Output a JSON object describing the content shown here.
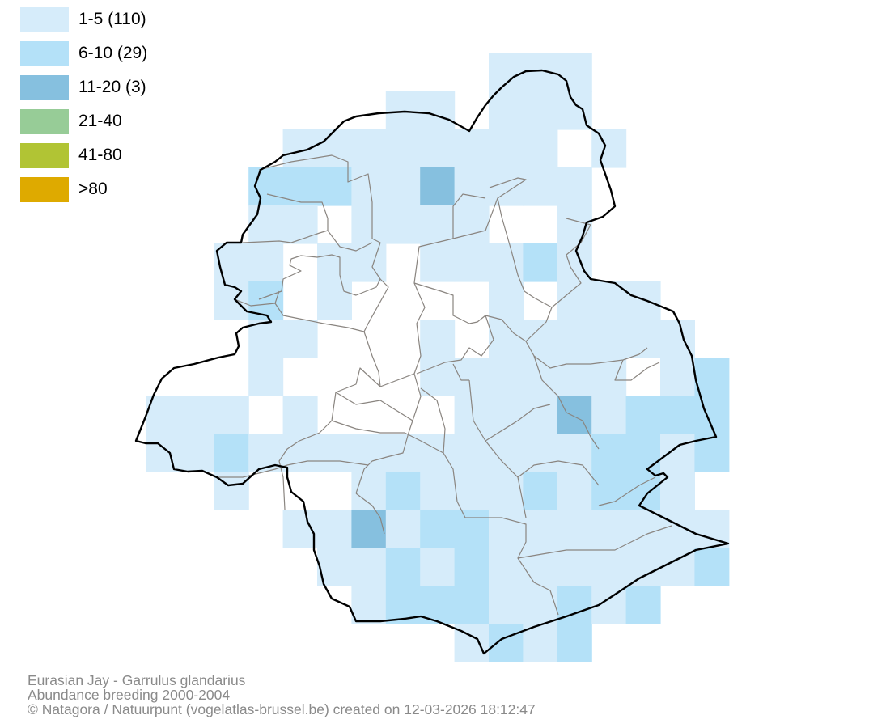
{
  "legend": {
    "items": [
      {
        "label": "1-5 (110)",
        "color": "#d6ecfa"
      },
      {
        "label": "6-10 (29)",
        "color": "#b4e1f8"
      },
      {
        "label": "11-20 (3)",
        "color": "#86c0df"
      },
      {
        "label": "21-40",
        "color": "#97cc97"
      },
      {
        "label": "41-80",
        "color": "#b1c434"
      },
      {
        "label": ">80",
        "color": "#deaa00"
      }
    ]
  },
  "credits": {
    "species": "Eurasian Jay - Garrulus glandarius",
    "subtitle": "Abundance breeding 2000-2004",
    "source": "© Natagora / Natuurpunt (vogelatlas-brussel.be) created on 12-03-2026 18:12:47"
  }
}
